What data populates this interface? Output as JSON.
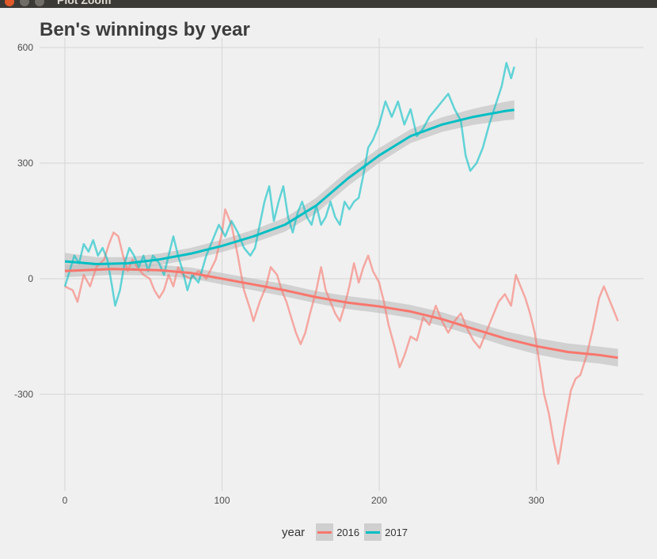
{
  "window": {
    "title": "Plot Zoom"
  },
  "chart_data": {
    "type": "line",
    "title": "Ben's winnings by year",
    "xlabel": "",
    "ylabel": "",
    "xlim": [
      -8,
      368
    ],
    "ylim": [
      -555,
      612
    ],
    "x_ticks": [
      0,
      100,
      200,
      300
    ],
    "y_ticks": [
      600,
      300,
      0,
      -300
    ],
    "x_tick_labels": [
      "0",
      "100",
      "200",
      "300"
    ],
    "y_tick_labels": [
      "600",
      "300",
      "0",
      "-300"
    ],
    "grid": true,
    "legend": {
      "title": "year",
      "position": "bottom"
    },
    "series": [
      {
        "name": "2016",
        "color": "#f8766d",
        "raw": [
          [
            0,
            -20
          ],
          [
            5,
            -30
          ],
          [
            8,
            -60
          ],
          [
            12,
            10
          ],
          [
            16,
            -20
          ],
          [
            20,
            30
          ],
          [
            25,
            50
          ],
          [
            28,
            90
          ],
          [
            31,
            120
          ],
          [
            34,
            110
          ],
          [
            37,
            60
          ],
          [
            40,
            20
          ],
          [
            43,
            50
          ],
          [
            46,
            30
          ],
          [
            50,
            10
          ],
          [
            54,
            0
          ],
          [
            57,
            -30
          ],
          [
            60,
            -50
          ],
          [
            63,
            -30
          ],
          [
            66,
            10
          ],
          [
            69,
            -20
          ],
          [
            72,
            30
          ],
          [
            75,
            10
          ],
          [
            80,
            0
          ],
          [
            85,
            20
          ],
          [
            90,
            0
          ],
          [
            96,
            50
          ],
          [
            100,
            120
          ],
          [
            102,
            180
          ],
          [
            106,
            140
          ],
          [
            110,
            60
          ],
          [
            114,
            -30
          ],
          [
            118,
            -80
          ],
          [
            120,
            -110
          ],
          [
            124,
            -60
          ],
          [
            128,
            -20
          ],
          [
            131,
            30
          ],
          [
            135,
            10
          ],
          [
            138,
            -30
          ],
          [
            141,
            -60
          ],
          [
            144,
            -100
          ],
          [
            147,
            -140
          ],
          [
            150,
            -170
          ],
          [
            153,
            -140
          ],
          [
            156,
            -90
          ],
          [
            160,
            -30
          ],
          [
            163,
            30
          ],
          [
            166,
            -30
          ],
          [
            169,
            -60
          ],
          [
            172,
            -90
          ],
          [
            175,
            -110
          ],
          [
            178,
            -70
          ],
          [
            181,
            -20
          ],
          [
            184,
            40
          ],
          [
            187,
            -10
          ],
          [
            190,
            30
          ],
          [
            193,
            60
          ],
          [
            196,
            20
          ],
          [
            200,
            -10
          ],
          [
            203,
            -60
          ],
          [
            206,
            -120
          ],
          [
            210,
            -180
          ],
          [
            213,
            -230
          ],
          [
            216,
            -200
          ],
          [
            220,
            -150
          ],
          [
            224,
            -160
          ],
          [
            228,
            -100
          ],
          [
            232,
            -120
          ],
          [
            236,
            -70
          ],
          [
            240,
            -110
          ],
          [
            244,
            -140
          ],
          [
            248,
            -110
          ],
          [
            252,
            -90
          ],
          [
            256,
            -130
          ],
          [
            260,
            -160
          ],
          [
            264,
            -180
          ],
          [
            268,
            -140
          ],
          [
            272,
            -100
          ],
          [
            276,
            -60
          ],
          [
            280,
            -40
          ],
          [
            284,
            -70
          ],
          [
            287,
            10
          ],
          [
            290,
            -20
          ],
          [
            293,
            -50
          ],
          [
            296,
            -90
          ],
          [
            299,
            -140
          ],
          [
            302,
            -220
          ],
          [
            305,
            -300
          ],
          [
            308,
            -350
          ],
          [
            311,
            -420
          ],
          [
            314,
            -480
          ],
          [
            318,
            -380
          ],
          [
            322,
            -290
          ],
          [
            325,
            -260
          ],
          [
            328,
            -250
          ],
          [
            332,
            -200
          ],
          [
            336,
            -130
          ],
          [
            340,
            -50
          ],
          [
            343,
            -20
          ],
          [
            346,
            -50
          ],
          [
            349,
            -80
          ],
          [
            352,
            -110
          ]
        ],
        "smooth": [
          [
            0,
            20
          ],
          [
            30,
            25
          ],
          [
            60,
            22
          ],
          [
            80,
            15
          ],
          [
            100,
            0
          ],
          [
            120,
            -15
          ],
          [
            140,
            -30
          ],
          [
            160,
            -48
          ],
          [
            180,
            -62
          ],
          [
            200,
            -72
          ],
          [
            220,
            -85
          ],
          [
            240,
            -105
          ],
          [
            260,
            -130
          ],
          [
            280,
            -155
          ],
          [
            300,
            -175
          ],
          [
            320,
            -190
          ],
          [
            340,
            -198
          ],
          [
            352,
            -205
          ]
        ],
        "band": [
          16,
          15,
          14,
          14,
          15,
          15,
          16,
          16,
          17,
          17,
          17,
          18,
          18,
          19,
          21,
          22,
          22,
          23
        ]
      },
      {
        "name": "2017",
        "color": "#00bfc4",
        "raw": [
          [
            0,
            -20
          ],
          [
            3,
            20
          ],
          [
            6,
            60
          ],
          [
            9,
            40
          ],
          [
            12,
            90
          ],
          [
            15,
            70
          ],
          [
            18,
            100
          ],
          [
            21,
            60
          ],
          [
            24,
            80
          ],
          [
            27,
            50
          ],
          [
            30,
            -20
          ],
          [
            32,
            -70
          ],
          [
            35,
            -30
          ],
          [
            38,
            40
          ],
          [
            41,
            80
          ],
          [
            44,
            60
          ],
          [
            47,
            30
          ],
          [
            50,
            60
          ],
          [
            53,
            20
          ],
          [
            56,
            60
          ],
          [
            60,
            40
          ],
          [
            63,
            10
          ],
          [
            66,
            60
          ],
          [
            69,
            110
          ],
          [
            72,
            60
          ],
          [
            75,
            20
          ],
          [
            78,
            -30
          ],
          [
            81,
            10
          ],
          [
            85,
            -10
          ],
          [
            90,
            60
          ],
          [
            94,
            100
          ],
          [
            98,
            140
          ],
          [
            102,
            110
          ],
          [
            106,
            150
          ],
          [
            110,
            120
          ],
          [
            114,
            80
          ],
          [
            118,
            60
          ],
          [
            121,
            80
          ],
          [
            124,
            140
          ],
          [
            127,
            200
          ],
          [
            130,
            240
          ],
          [
            133,
            150
          ],
          [
            136,
            200
          ],
          [
            139,
            240
          ],
          [
            142,
            160
          ],
          [
            145,
            120
          ],
          [
            148,
            170
          ],
          [
            151,
            200
          ],
          [
            154,
            160
          ],
          [
            157,
            140
          ],
          [
            160,
            190
          ],
          [
            163,
            140
          ],
          [
            166,
            160
          ],
          [
            169,
            200
          ],
          [
            172,
            160
          ],
          [
            175,
            140
          ],
          [
            178,
            200
          ],
          [
            181,
            180
          ],
          [
            184,
            200
          ],
          [
            187,
            210
          ],
          [
            190,
            270
          ],
          [
            193,
            340
          ],
          [
            196,
            360
          ],
          [
            200,
            400
          ],
          [
            204,
            460
          ],
          [
            208,
            420
          ],
          [
            212,
            460
          ],
          [
            216,
            400
          ],
          [
            220,
            440
          ],
          [
            224,
            370
          ],
          [
            228,
            390
          ],
          [
            232,
            420
          ],
          [
            236,
            440
          ],
          [
            240,
            460
          ],
          [
            244,
            480
          ],
          [
            248,
            440
          ],
          [
            252,
            410
          ],
          [
            255,
            320
          ],
          [
            258,
            280
          ],
          [
            262,
            300
          ],
          [
            266,
            340
          ],
          [
            270,
            400
          ],
          [
            274,
            450
          ],
          [
            278,
            500
          ],
          [
            281,
            560
          ],
          [
            284,
            520
          ],
          [
            286,
            550
          ]
        ],
        "smooth": [
          [
            0,
            45
          ],
          [
            20,
            38
          ],
          [
            40,
            40
          ],
          [
            60,
            50
          ],
          [
            80,
            65
          ],
          [
            100,
            85
          ],
          [
            120,
            110
          ],
          [
            140,
            140
          ],
          [
            160,
            190
          ],
          [
            180,
            260
          ],
          [
            200,
            320
          ],
          [
            220,
            370
          ],
          [
            240,
            400
          ],
          [
            260,
            420
          ],
          [
            280,
            435
          ],
          [
            286,
            438
          ]
        ],
        "band": [
          22,
          18,
          16,
          15,
          15,
          16,
          17,
          18,
          20,
          20,
          19,
          18,
          19,
          21,
          24,
          25
        ]
      }
    ]
  }
}
